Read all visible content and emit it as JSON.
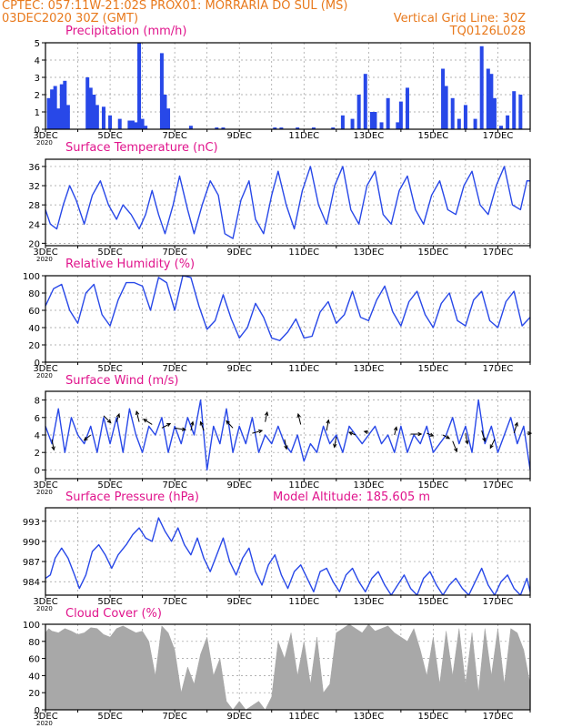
{
  "header": {
    "left_line1": "CPTEC:   057:11W-21:02S   PROX01: MORRARIA DO SUL (MS)",
    "left_line2": "03DEC2020 30Z (GMT)",
    "right_line2": "Vertical Grid Line: 30Z",
    "right_line3": "TQ0126L028"
  },
  "colors": {
    "header": "#e8791c",
    "title": "#e0148c",
    "series": "#2848e8",
    "bars": "#2848e8",
    "cloud": "#a8a8a8",
    "arrow": "#000000"
  },
  "x_labels": [
    "3DEC",
    "5DEC",
    "7DEC",
    "9DEC",
    "11DEC",
    "13DEC",
    "15DEC",
    "17DEC"
  ],
  "year_label": "2020",
  "model_altitude": "Model Altitude: 185.605 m",
  "chart_data": [
    {
      "id": "precip",
      "type": "bar",
      "title": "Precipitation (mm/h)",
      "xlim": [
        0,
        15
      ],
      "ylim": [
        0,
        5
      ],
      "yticks": [
        0,
        1,
        2,
        3,
        4,
        5
      ],
      "x": [
        0.1,
        0.2,
        0.3,
        0.4,
        0.5,
        0.6,
        0.7,
        1.3,
        1.4,
        1.5,
        1.6,
        1.8,
        2.0,
        2.3,
        2.6,
        2.7,
        2.8,
        2.9,
        3.0,
        3.1,
        3.6,
        3.7,
        3.8,
        4.5,
        5.3,
        5.5,
        7.1,
        7.3,
        7.8,
        8.3,
        8.9,
        9.2,
        9.5,
        9.7,
        9.9,
        10.1,
        10.2,
        10.4,
        10.6,
        10.9,
        11.0,
        11.2,
        12.3,
        12.4,
        12.6,
        12.8,
        13.0,
        13.3,
        13.5,
        13.7,
        13.8,
        13.9,
        14.1,
        14.3,
        14.5,
        14.7
      ],
      "values": [
        1.8,
        2.3,
        2.5,
        1.2,
        2.6,
        2.8,
        1.4,
        3.0,
        2.4,
        2.0,
        1.4,
        1.3,
        0.8,
        0.6,
        0.5,
        0.5,
        0.4,
        5.0,
        0.6,
        0.2,
        4.4,
        2.0,
        1.2,
        0.2,
        0.1,
        0.1,
        0.1,
        0.1,
        0.1,
        0.1,
        0.1,
        0.8,
        0.6,
        2.0,
        3.2,
        1.0,
        1.0,
        0.4,
        1.8,
        0.4,
        1.6,
        2.4,
        3.5,
        2.5,
        1.8,
        0.6,
        1.4,
        0.6,
        4.8,
        3.5,
        3.2,
        1.8,
        0.2,
        0.8,
        2.2,
        2.0
      ]
    },
    {
      "id": "temp",
      "type": "line",
      "title": "Surface Temperature (nC)",
      "xlim": [
        0,
        15
      ],
      "ylim": [
        19.5,
        37.5
      ],
      "yticks": [
        20,
        24,
        28,
        32,
        36
      ],
      "x": [
        0.0,
        0.15,
        0.35,
        0.55,
        0.75,
        0.95,
        1.2,
        1.45,
        1.7,
        1.95,
        2.2,
        2.4,
        2.65,
        2.9,
        3.1,
        3.3,
        3.5,
        3.7,
        3.95,
        4.15,
        4.4,
        4.6,
        4.85,
        5.1,
        5.35,
        5.55,
        5.8,
        6.05,
        6.3,
        6.5,
        6.75,
        7.0,
        7.2,
        7.45,
        7.7,
        7.95,
        8.2,
        8.45,
        8.7,
        8.95,
        9.2,
        9.45,
        9.7,
        9.95,
        10.2,
        10.45,
        10.7,
        10.95,
        11.2,
        11.45,
        11.7,
        11.95,
        12.2,
        12.45,
        12.7,
        12.95,
        13.2,
        13.45,
        13.7,
        13.95,
        14.2,
        14.45,
        14.7,
        14.9,
        15.0
      ],
      "values": [
        27,
        24,
        23,
        28,
        32,
        29,
        24,
        30,
        33,
        28,
        25,
        28,
        26,
        23,
        26,
        31,
        26,
        22,
        28,
        34,
        27,
        22,
        28,
        33,
        30,
        22,
        21,
        29,
        33,
        25,
        22,
        30,
        35,
        28,
        23,
        31,
        36,
        28,
        24,
        32,
        36,
        27,
        24,
        32,
        35,
        26,
        24,
        31,
        34,
        27,
        24,
        30,
        33,
        27,
        26,
        32,
        35,
        28,
        26,
        32,
        36,
        28,
        27,
        33,
        33
      ]
    },
    {
      "id": "rh",
      "type": "line",
      "title": "Relative Humidity (%)",
      "xlim": [
        0,
        15
      ],
      "ylim": [
        0,
        100
      ],
      "yticks": [
        0,
        20,
        40,
        60,
        80,
        100
      ],
      "x": [
        0.0,
        0.25,
        0.5,
        0.75,
        1.0,
        1.25,
        1.5,
        1.75,
        2.0,
        2.25,
        2.5,
        2.75,
        3.0,
        3.25,
        3.5,
        3.75,
        4.0,
        4.25,
        4.5,
        4.75,
        5.0,
        5.25,
        5.5,
        5.75,
        6.0,
        6.25,
        6.5,
        6.75,
        7.0,
        7.25,
        7.5,
        7.75,
        8.0,
        8.25,
        8.5,
        8.75,
        9.0,
        9.25,
        9.5,
        9.75,
        10.0,
        10.25,
        10.5,
        10.75,
        11.0,
        11.25,
        11.5,
        11.75,
        12.0,
        12.25,
        12.5,
        12.75,
        13.0,
        13.25,
        13.5,
        13.75,
        14.0,
        14.25,
        14.5,
        14.75,
        15.0
      ],
      "values": [
        65,
        85,
        90,
        60,
        45,
        80,
        90,
        55,
        42,
        72,
        92,
        92,
        88,
        60,
        98,
        92,
        60,
        100,
        98,
        65,
        38,
        48,
        78,
        50,
        28,
        40,
        68,
        52,
        28,
        25,
        35,
        50,
        28,
        30,
        58,
        70,
        45,
        55,
        82,
        52,
        48,
        72,
        88,
        58,
        42,
        70,
        82,
        55,
        40,
        68,
        80,
        48,
        42,
        72,
        82,
        48,
        40,
        70,
        82,
        42,
        52
      ]
    },
    {
      "id": "wind",
      "type": "line",
      "title": "Surface Wind (m/s)",
      "xlim": [
        0,
        15
      ],
      "ylim": [
        -1,
        9
      ],
      "yticks": [
        0,
        2,
        4,
        6,
        8
      ],
      "x": [
        0.0,
        0.2,
        0.4,
        0.6,
        0.8,
        1.0,
        1.2,
        1.4,
        1.6,
        1.8,
        2.0,
        2.2,
        2.4,
        2.6,
        2.8,
        3.0,
        3.2,
        3.4,
        3.6,
        3.8,
        4.0,
        4.2,
        4.4,
        4.6,
        4.8,
        5.0,
        5.2,
        5.4,
        5.6,
        5.8,
        6.0,
        6.2,
        6.4,
        6.6,
        6.8,
        7.0,
        7.2,
        7.4,
        7.6,
        7.8,
        8.0,
        8.2,
        8.4,
        8.6,
        8.8,
        9.0,
        9.2,
        9.4,
        9.6,
        9.8,
        10.0,
        10.2,
        10.4,
        10.6,
        10.8,
        11.0,
        11.2,
        11.4,
        11.6,
        11.8,
        12.0,
        12.2,
        12.4,
        12.6,
        12.8,
        13.0,
        13.2,
        13.4,
        13.6,
        13.8,
        14.0,
        14.2,
        14.4,
        14.6,
        14.8,
        15.0
      ],
      "values": [
        5,
        3,
        7,
        2,
        6,
        4,
        3,
        5,
        2,
        6,
        3,
        6,
        2,
        7,
        4,
        2,
        5,
        4,
        6,
        2,
        5,
        3,
        6,
        4,
        8,
        0,
        5,
        3,
        7,
        2,
        5,
        3,
        6,
        2,
        4,
        3,
        5,
        3,
        2,
        4,
        1,
        3,
        2,
        5,
        3,
        4,
        2,
        5,
        4,
        3,
        4,
        5,
        3,
        4,
        2,
        5,
        2,
        4,
        3,
        5,
        2,
        3,
        4,
        6,
        3,
        5,
        2,
        8,
        3,
        5,
        2,
        4,
        6,
        3,
        5,
        0
      ],
      "arrows": [
        {
          "x": 0.2,
          "y": 3.5,
          "dx": 0.06,
          "dy": -1.2
        },
        {
          "x": 1.4,
          "y": 4.0,
          "dx": -0.2,
          "dy": -0.6
        },
        {
          "x": 1.8,
          "y": 6.2,
          "dx": 0.22,
          "dy": -0.8
        },
        {
          "x": 2.2,
          "y": 5.5,
          "dx": 0.08,
          "dy": 0.9
        },
        {
          "x": 2.9,
          "y": 5.5,
          "dx": -0.08,
          "dy": 1.2
        },
        {
          "x": 3.3,
          "y": 5.2,
          "dx": -0.26,
          "dy": 0.6
        },
        {
          "x": 3.6,
          "y": 4.8,
          "dx": 0.26,
          "dy": 0.5
        },
        {
          "x": 4.0,
          "y": 4.8,
          "dx": 0.33,
          "dy": -0.2
        },
        {
          "x": 4.5,
          "y": 4.5,
          "dx": 0.06,
          "dy": 1.0
        },
        {
          "x": 4.9,
          "y": 4.5,
          "dx": -0.1,
          "dy": 1.0
        },
        {
          "x": 5.8,
          "y": 4.8,
          "dx": -0.2,
          "dy": 0.8
        },
        {
          "x": 6.4,
          "y": 4.2,
          "dx": 0.3,
          "dy": 0.3
        },
        {
          "x": 6.8,
          "y": 5.5,
          "dx": 0.06,
          "dy": 1.1
        },
        {
          "x": 7.4,
          "y": 3.5,
          "dx": 0.06,
          "dy": -1.1
        },
        {
          "x": 7.9,
          "y": 5.2,
          "dx": -0.08,
          "dy": 1.2
        },
        {
          "x": 8.7,
          "y": 4.5,
          "dx": 0.06,
          "dy": 1.2
        },
        {
          "x": 9.0,
          "y": 3.8,
          "dx": -0.06,
          "dy": -1.2
        },
        {
          "x": 9.6,
          "y": 4.0,
          "dx": -0.2,
          "dy": 0.3
        },
        {
          "x": 10.0,
          "y": 4.3,
          "dx": -0.13,
          "dy": 0.1
        },
        {
          "x": 10.8,
          "y": 4.0,
          "dx": 0.06,
          "dy": 0.9
        },
        {
          "x": 11.3,
          "y": 4.1,
          "dx": 0.33,
          "dy": 0.0
        },
        {
          "x": 11.8,
          "y": 4.2,
          "dx": 0.2,
          "dy": -0.3
        },
        {
          "x": 12.3,
          "y": 4.0,
          "dx": 0.2,
          "dy": -0.4
        },
        {
          "x": 12.6,
          "y": 3.3,
          "dx": 0.13,
          "dy": -1.2
        },
        {
          "x": 13.0,
          "y": 4.2,
          "dx": 0.06,
          "dy": -1.2
        },
        {
          "x": 13.5,
          "y": 4.5,
          "dx": 0.1,
          "dy": -1.2
        },
        {
          "x": 13.9,
          "y": 3.5,
          "dx": -0.13,
          "dy": -1.0
        },
        {
          "x": 14.5,
          "y": 4.2,
          "dx": 0.1,
          "dy": 1.2
        },
        {
          "x": 14.9,
          "y": 4.2,
          "dx": 0.13,
          "dy": 0.0
        }
      ]
    },
    {
      "id": "pressure",
      "type": "line",
      "title": "Surface Pressure (hPa)",
      "xlim": [
        0,
        15
      ],
      "ylim": [
        982,
        995
      ],
      "yticks": [
        984,
        987,
        990,
        993
      ],
      "x": [
        0.0,
        0.15,
        0.3,
        0.5,
        0.7,
        0.9,
        1.05,
        1.25,
        1.45,
        1.65,
        1.85,
        2.05,
        2.25,
        2.5,
        2.7,
        2.9,
        3.1,
        3.3,
        3.5,
        3.7,
        3.9,
        4.1,
        4.3,
        4.5,
        4.7,
        4.9,
        5.1,
        5.3,
        5.5,
        5.7,
        5.9,
        6.1,
        6.3,
        6.5,
        6.7,
        6.9,
        7.1,
        7.3,
        7.5,
        7.7,
        7.9,
        8.1,
        8.3,
        8.5,
        8.7,
        8.9,
        9.1,
        9.3,
        9.5,
        9.7,
        9.9,
        10.1,
        10.3,
        10.5,
        10.7,
        10.9,
        11.1,
        11.3,
        11.5,
        11.7,
        11.9,
        12.1,
        12.3,
        12.5,
        12.7,
        12.9,
        13.1,
        13.3,
        13.5,
        13.7,
        13.9,
        14.1,
        14.3,
        14.5,
        14.7,
        14.9,
        15.0
      ],
      "values": [
        984.5,
        985,
        987.5,
        989,
        987.5,
        985,
        983,
        985,
        988.5,
        989.5,
        988,
        986,
        988,
        989.5,
        991,
        992,
        990.5,
        990,
        993.5,
        991.5,
        990,
        992,
        989.5,
        988,
        990.5,
        987.5,
        985.5,
        988,
        990.5,
        987,
        985,
        987.5,
        989,
        985.5,
        983.5,
        986.5,
        988,
        985,
        983,
        985.5,
        986.5,
        984.5,
        982.5,
        985.5,
        986,
        984,
        982.5,
        985,
        986,
        984,
        982.5,
        984.5,
        985.5,
        983.5,
        982,
        983.5,
        985,
        983,
        982,
        984.5,
        985.5,
        983.5,
        982,
        983.5,
        984.5,
        983,
        982,
        984,
        986,
        983.5,
        982,
        984,
        985,
        983,
        982,
        984.5,
        982.5
      ]
    },
    {
      "id": "cloud",
      "type": "area",
      "title": "Cloud Cover (%)",
      "xlim": [
        0,
        15
      ],
      "ylim": [
        0,
        100
      ],
      "yticks": [
        0,
        20,
        40,
        60,
        80,
        100
      ],
      "x": [
        0.0,
        0.1,
        0.2,
        0.4,
        0.6,
        0.8,
        1.0,
        1.2,
        1.4,
        1.6,
        1.8,
        2.0,
        2.2,
        2.4,
        2.6,
        2.8,
        3.0,
        3.2,
        3.4,
        3.6,
        3.8,
        4.0,
        4.2,
        4.4,
        4.6,
        4.8,
        5.0,
        5.2,
        5.4,
        5.6,
        5.8,
        6.0,
        6.2,
        6.4,
        6.6,
        6.8,
        7.0,
        7.2,
        7.4,
        7.6,
        7.8,
        8.0,
        8.2,
        8.4,
        8.6,
        8.8,
        9.0,
        9.2,
        9.4,
        9.6,
        9.8,
        10.0,
        10.2,
        10.4,
        10.6,
        10.8,
        11.0,
        11.2,
        11.4,
        11.6,
        11.8,
        12.0,
        12.2,
        12.4,
        12.6,
        12.8,
        13.0,
        13.2,
        13.4,
        13.6,
        13.8,
        14.0,
        14.2,
        14.4,
        14.6,
        14.8,
        15.0
      ],
      "values": [
        90,
        95,
        92,
        90,
        95,
        92,
        88,
        90,
        96,
        95,
        88,
        85,
        95,
        98,
        94,
        90,
        92,
        80,
        40,
        98,
        90,
        70,
        20,
        50,
        30,
        65,
        85,
        40,
        60,
        10,
        0,
        10,
        0,
        5,
        10,
        0,
        15,
        80,
        60,
        90,
        40,
        80,
        30,
        85,
        20,
        30,
        90,
        95,
        100,
        95,
        90,
        100,
        92,
        95,
        98,
        90,
        85,
        80,
        95,
        70,
        40,
        85,
        30,
        92,
        40,
        95,
        30,
        90,
        20,
        95,
        40,
        95,
        30,
        95,
        90,
        70,
        30
      ]
    }
  ]
}
